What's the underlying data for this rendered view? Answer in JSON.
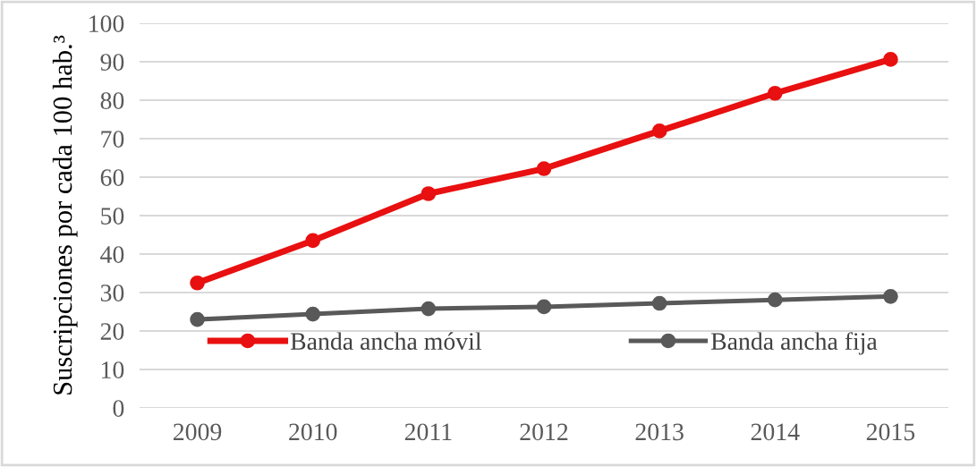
{
  "chart_data": {
    "type": "line",
    "ylabel": "Suscripciones por cada 100 hab.³",
    "categories": [
      "2009",
      "2010",
      "2011",
      "2012",
      "2013",
      "2014",
      "2015"
    ],
    "series": [
      {
        "name": "Banda ancha móvil",
        "color": "#e81010",
        "values": [
          32.5,
          43.5,
          55.7,
          62.2,
          72.0,
          81.8,
          90.6
        ]
      },
      {
        "name": "Banda ancha fija",
        "color": "#595959",
        "values": [
          23.0,
          24.4,
          25.8,
          26.3,
          27.2,
          28.1,
          29.0
        ]
      }
    ],
    "ylim": [
      0,
      100
    ],
    "yticks": [
      0,
      10,
      20,
      30,
      40,
      50,
      60,
      70,
      80,
      90,
      100
    ],
    "grid": "y",
    "legend": "bottom",
    "marker": "circle",
    "line_style": "solid"
  }
}
